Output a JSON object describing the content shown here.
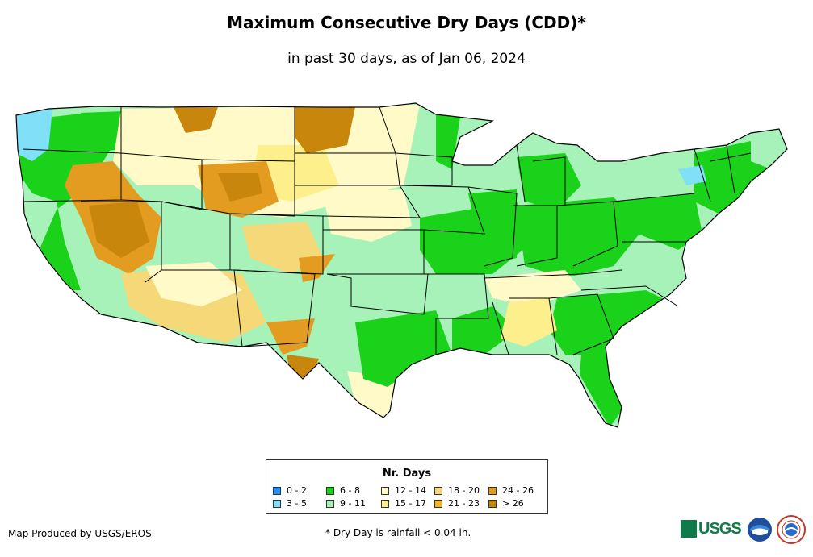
{
  "title": "Maximum Consecutive Dry Days (CDD)*",
  "subtitle": "in past 30 days, as of Jan 06, 2024",
  "legend": {
    "title": "Nr. Days",
    "items": [
      {
        "label": "0 - 2",
        "color": "#1e90ff"
      },
      {
        "label": "3 - 5",
        "color": "#80e0f8"
      },
      {
        "label": "6 - 8",
        "color": "#1bd21b"
      },
      {
        "label": "9 - 11",
        "color": "#a6f2b8"
      },
      {
        "label": "12 - 14",
        "color": "#fffac8"
      },
      {
        "label": "15 - 17",
        "color": "#fdf08c"
      },
      {
        "label": "18 - 20",
        "color": "#f5d878"
      },
      {
        "label": "21 - 23",
        "color": "#f2b418"
      },
      {
        "label": "24 - 26",
        "color": "#e49c20"
      },
      {
        "label": "> 26",
        "color": "#c8860c"
      }
    ]
  },
  "credit": "Map Produced by USGS/EROS",
  "footnote": "* Dry Day is rainfall < 0.04 in.",
  "logos": {
    "usgs": "USGS",
    "noaa": "noaa",
    "nws": "National Weather Service"
  }
}
